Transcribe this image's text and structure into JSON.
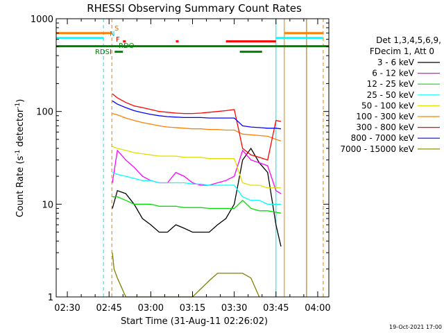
{
  "chart_data": {
    "type": "line",
    "title": "RHESSI Observing Summary Count Rates",
    "xlabel": "Start Time (31-Aug-11 02:26:02)",
    "ylabel_main": "Count Rate (s",
    "ylabel_sup": "-1",
    "ylabel_mid": " detector",
    "ylabel_sup2": "-1",
    "ylabel_end": ")",
    "yscale": "log",
    "ylim": [
      1,
      1000
    ],
    "xlim_minutes": [
      "02:26",
      "04:04"
    ],
    "x_ticks": [
      "02:30",
      "02:45",
      "03:00",
      "03:15",
      "03:30",
      "03:45",
      "04:00"
    ],
    "y_ticks": [
      "1",
      "10",
      "100",
      "1000"
    ],
    "legend_header": [
      "Det 1,3,4,5,6,9,",
      "FDecim 1, Att 0"
    ],
    "timestamp": "19-Oct-2021 17:00",
    "state_labels": {
      "s": "S",
      "n": "N",
      "f": "F",
      "rdo": "RDO",
      "rdsi": "RDSI"
    },
    "vertical_markers": [
      {
        "time": "02:43",
        "color": "#00e5e5",
        "style": "dashed"
      },
      {
        "time": "02:46",
        "color": "#e08000",
        "style": "dashed"
      },
      {
        "time": "03:45",
        "color": "#00e5e5",
        "style": "solid"
      },
      {
        "time": "03:48",
        "color": "#e08000",
        "style": "solid"
      },
      {
        "time": "03:56",
        "color": "#b06000",
        "style": "solid"
      },
      {
        "time": "04:02",
        "color": "#e08000",
        "style": "dashed"
      }
    ],
    "series": [
      {
        "name": "3 - 6 keV",
        "color": "#000000",
        "t": [
          2.77,
          2.8,
          2.85,
          2.9,
          2.95,
          3.0,
          3.05,
          3.1,
          3.15,
          3.2,
          3.25,
          3.3,
          3.35,
          3.4,
          3.45,
          3.5,
          3.55,
          3.6,
          3.65,
          3.7,
          3.75,
          3.78
        ],
        "v": [
          9,
          14,
          13,
          10,
          7,
          6,
          5,
          5,
          6,
          5.5,
          5,
          5,
          5,
          6,
          7,
          10,
          30,
          40,
          28,
          22,
          6,
          3.5
        ]
      },
      {
        "name": "6 - 12 keV",
        "color": "#ff00ff",
        "t": [
          2.77,
          2.8,
          2.85,
          2.9,
          2.95,
          3.0,
          3.05,
          3.1,
          3.15,
          3.2,
          3.25,
          3.3,
          3.35,
          3.4,
          3.45,
          3.5,
          3.55,
          3.6,
          3.65,
          3.7,
          3.75,
          3.78
        ],
        "v": [
          17,
          38,
          30,
          25,
          20,
          18,
          17,
          17,
          22,
          20,
          17,
          16,
          16,
          17,
          18,
          20,
          38,
          30,
          28,
          26,
          14,
          13
        ]
      },
      {
        "name": "12 - 25 keV",
        "color": "#00e000",
        "t": [
          2.77,
          2.8,
          2.85,
          2.9,
          2.95,
          3.0,
          3.05,
          3.1,
          3.15,
          3.2,
          3.25,
          3.3,
          3.35,
          3.4,
          3.45,
          3.5,
          3.55,
          3.6,
          3.65,
          3.7,
          3.75,
          3.78
        ],
        "v": [
          12,
          12,
          11,
          10,
          10,
          10,
          9.5,
          9.5,
          9.5,
          9.2,
          9.2,
          9.2,
          9.0,
          9.0,
          9.0,
          9.0,
          11,
          9.0,
          8.5,
          8.5,
          8.2,
          8.0
        ]
      },
      {
        "name": "25 - 50 keV",
        "color": "#00ffff",
        "t": [
          2.77,
          2.8,
          2.85,
          2.9,
          2.95,
          3.0,
          3.05,
          3.1,
          3.15,
          3.2,
          3.25,
          3.3,
          3.35,
          3.4,
          3.45,
          3.5,
          3.55,
          3.6,
          3.65,
          3.7,
          3.75,
          3.78
        ],
        "v": [
          22,
          21,
          20,
          19,
          18,
          18,
          17,
          17,
          17,
          17,
          16.5,
          16.5,
          16,
          16,
          16,
          16,
          12,
          11,
          11,
          10,
          10,
          10
        ]
      },
      {
        "name": "50 - 100 keV",
        "color": "#e0e000",
        "t": [
          2.77,
          2.8,
          2.85,
          2.9,
          2.95,
          3.0,
          3.05,
          3.1,
          3.15,
          3.2,
          3.25,
          3.3,
          3.35,
          3.4,
          3.45,
          3.5,
          3.55,
          3.6,
          3.65,
          3.7,
          3.75,
          3.78
        ],
        "v": [
          42,
          40,
          38,
          36,
          35,
          34,
          33,
          33,
          33,
          32,
          32,
          32,
          31,
          31,
          31,
          31,
          17,
          16,
          16,
          15,
          15,
          15
        ]
      },
      {
        "name": "100 - 300 keV",
        "color": "#ff8000",
        "t": [
          2.77,
          2.8,
          2.85,
          2.9,
          2.95,
          3.0,
          3.05,
          3.1,
          3.15,
          3.2,
          3.25,
          3.3,
          3.35,
          3.4,
          3.45,
          3.5,
          3.55,
          3.6,
          3.65,
          3.7,
          3.75,
          3.78
        ],
        "v": [
          95,
          92,
          85,
          80,
          76,
          73,
          70,
          68,
          67,
          66,
          65,
          65,
          64,
          64,
          63,
          63,
          57,
          56,
          55,
          54,
          50,
          48
        ]
      },
      {
        "name": "300 - 800 keV",
        "color": "#ff0000",
        "t": [
          2.77,
          2.8,
          2.85,
          2.9,
          2.95,
          3.0,
          3.05,
          3.1,
          3.15,
          3.2,
          3.25,
          3.3,
          3.35,
          3.4,
          3.45,
          3.5,
          3.55,
          3.6,
          3.65,
          3.7,
          3.75,
          3.78
        ],
        "v": [
          155,
          140,
          125,
          115,
          110,
          105,
          100,
          98,
          96,
          95,
          95,
          96,
          98,
          100,
          102,
          105,
          40,
          34,
          32,
          30,
          80,
          78
        ]
      },
      {
        "name": "800 - 7000 keV",
        "color": "#0000ff",
        "t": [
          2.77,
          2.8,
          2.85,
          2.9,
          2.95,
          3.0,
          3.05,
          3.1,
          3.15,
          3.2,
          3.25,
          3.3,
          3.35,
          3.4,
          3.45,
          3.5,
          3.55,
          3.6,
          3.65,
          3.7,
          3.75,
          3.78
        ],
        "v": [
          130,
          120,
          110,
          102,
          97,
          93,
          90,
          88,
          87,
          86,
          86,
          86,
          85,
          85,
          85,
          85,
          70,
          68,
          67,
          66,
          66,
          65
        ]
      },
      {
        "name": "7000 - 15000 keV",
        "color": "#808000",
        "t": [
          2.77,
          2.78,
          2.8,
          2.85,
          2.9,
          3.0,
          3.25,
          3.35,
          3.4,
          3.45,
          3.5,
          3.55,
          3.6,
          3.65
        ],
        "v": [
          3.0,
          2.0,
          1.6,
          1.0,
          1.0,
          1.0,
          1.0,
          1.5,
          1.8,
          1.8,
          1.8,
          1.8,
          1.6,
          1.0
        ]
      }
    ]
  }
}
